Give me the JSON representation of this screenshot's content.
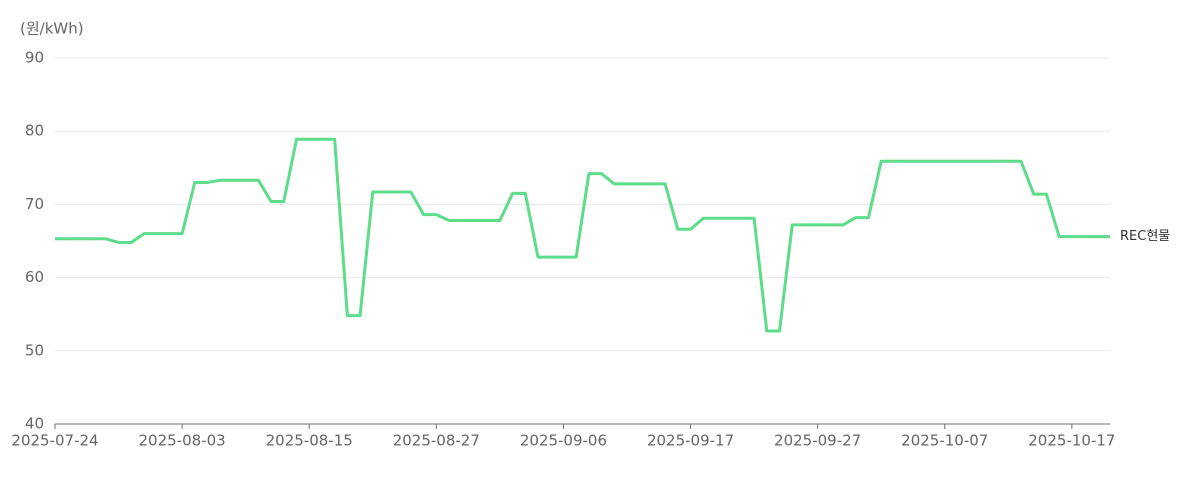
{
  "chart_data": {
    "type": "line",
    "y_label": "(원/kWh)",
    "categories": [
      "2025-07-24",
      null,
      null,
      null,
      null,
      null,
      null,
      null,
      null,
      null,
      "2025-08-03",
      null,
      null,
      null,
      null,
      null,
      null,
      null,
      null,
      null,
      "2025-08-15",
      null,
      null,
      null,
      null,
      null,
      null,
      null,
      null,
      null,
      "2025-08-27",
      null,
      null,
      null,
      null,
      null,
      null,
      null,
      null,
      null,
      "2025-09-06",
      null,
      null,
      null,
      null,
      null,
      null,
      null,
      null,
      null,
      "2025-09-17",
      null,
      null,
      null,
      null,
      null,
      null,
      null,
      null,
      null,
      "2025-09-27",
      null,
      null,
      null,
      null,
      null,
      null,
      null,
      null,
      null,
      "2025-10-07",
      null,
      null,
      null,
      null,
      null,
      null,
      null,
      null,
      null,
      "2025-10-17",
      null,
      null,
      null
    ],
    "series": [
      {
        "name": "REC현물",
        "color": "#5ddc8a",
        "values": [
          65.3,
          65.3,
          65.3,
          65.3,
          65.3,
          64.8,
          64.8,
          66.0,
          66.0,
          66.0,
          66.0,
          73.0,
          73.0,
          73.3,
          73.3,
          73.3,
          73.3,
          70.4,
          70.4,
          78.9,
          78.9,
          78.9,
          78.9,
          54.8,
          54.8,
          71.7,
          71.7,
          71.7,
          71.7,
          68.6,
          68.6,
          67.8,
          67.8,
          67.8,
          67.8,
          67.8,
          71.5,
          71.5,
          62.8,
          62.8,
          62.8,
          62.8,
          74.2,
          74.2,
          72.8,
          72.8,
          72.8,
          72.8,
          72.8,
          66.6,
          66.6,
          68.1,
          68.1,
          68.1,
          68.1,
          68.1,
          52.7,
          52.7,
          67.2,
          67.2,
          67.2,
          67.2,
          67.2,
          68.2,
          68.2,
          75.9,
          75.9,
          75.9,
          75.9,
          75.9,
          75.9,
          75.9,
          75.9,
          75.9,
          75.9,
          75.9,
          75.9,
          71.4,
          71.4,
          65.6,
          65.6,
          65.6,
          65.6,
          65.6
        ]
      }
    ],
    "ylim": [
      40,
      90
    ],
    "yticks": [
      40,
      50,
      60,
      70,
      80,
      90
    ],
    "grid": true
  }
}
